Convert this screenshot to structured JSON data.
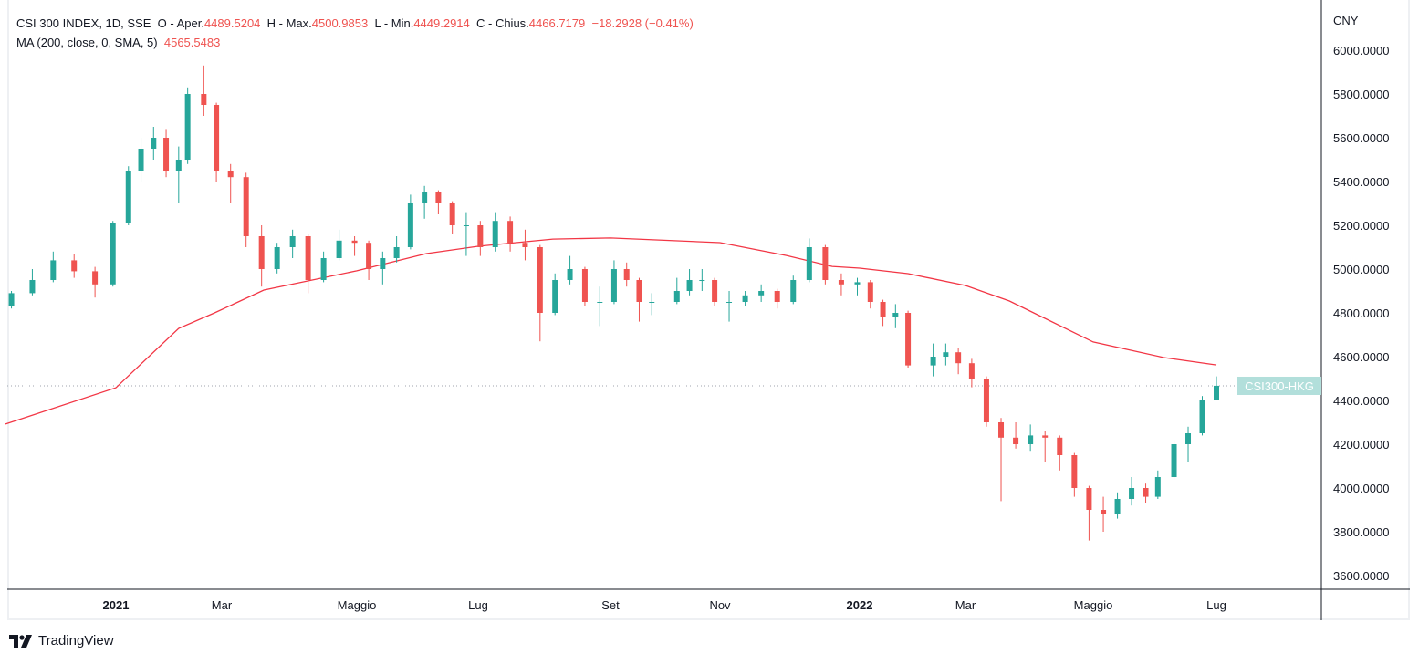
{
  "legend": {
    "symbol": "CSI 300 INDEX, 1D, SSE",
    "open_label": "O - Aper.",
    "open": "4489.5204",
    "high_label": "H - Max.",
    "high": "4500.9853",
    "low_label": "L - Min.",
    "low": "4449.2914",
    "close_label": "C - Chius.",
    "close": "4466.7179",
    "change": "−18.2928 (−0.41%)",
    "ma_label": "MA (200, close, 0, SMA, 5)",
    "ma_value": "4565.5483"
  },
  "brand": "TradingView",
  "colors": {
    "up": "#26a69a",
    "down": "#ef5350",
    "ma": "#f23645",
    "price_label_bg": "#b2dfdb"
  },
  "chart_data": {
    "type": "candlestick",
    "currency_label": "CNY",
    "price_label": "CSI300-HKG",
    "last_price": 4466.7179,
    "ylim": [
      3600,
      6000
    ],
    "y_ticks": [
      "6000.0000",
      "5800.0000",
      "5600.0000",
      "5400.0000",
      "5200.0000",
      "5000.0000",
      "4800.0000",
      "4600.0000",
      "4400.0000",
      "4200.0000",
      "4000.0000",
      "3800.0000",
      "3600.0000"
    ],
    "x_ticks": [
      {
        "date": "2021-01-01",
        "label": "2021",
        "bold": true
      },
      {
        "date": "2021-03-01",
        "label": "Mar"
      },
      {
        "date": "2021-05-01",
        "label": "Maggio"
      },
      {
        "date": "2021-07-01",
        "label": "Lug"
      },
      {
        "date": "2021-09-01",
        "label": "Set"
      },
      {
        "date": "2021-11-01",
        "label": "Nov"
      },
      {
        "date": "2022-01-01",
        "label": "2022",
        "bold": true
      },
      {
        "date": "2022-03-01",
        "label": "Mar"
      },
      {
        "date": "2022-05-01",
        "label": "Maggio"
      },
      {
        "date": "2022-07-01",
        "label": "Lug"
      }
    ],
    "candles_ohlc": [
      [
        "2020-11-27",
        4830,
        4900,
        4820,
        4890
      ],
      [
        "2020-12-04",
        4890,
        5000,
        4880,
        4950
      ],
      [
        "2020-12-11",
        4950,
        5080,
        4940,
        5040
      ],
      [
        "2020-12-18",
        5040,
        5070,
        4960,
        4990
      ],
      [
        "2020-12-25",
        4990,
        5010,
        4870,
        4930
      ],
      [
        "2020-12-31",
        4930,
        5220,
        4920,
        5210
      ],
      [
        "2021-01-08",
        5210,
        5470,
        5200,
        5450
      ],
      [
        "2021-01-15",
        5450,
        5600,
        5400,
        5550
      ],
      [
        "2021-01-22",
        5550,
        5650,
        5500,
        5600
      ],
      [
        "2021-01-29",
        5600,
        5640,
        5420,
        5450
      ],
      [
        "2021-02-05",
        5450,
        5560,
        5300,
        5500
      ],
      [
        "2021-02-10",
        5500,
        5830,
        5480,
        5800
      ],
      [
        "2021-02-19",
        5800,
        5930,
        5700,
        5750
      ],
      [
        "2021-02-26",
        5750,
        5760,
        5400,
        5450
      ],
      [
        "2021-03-05",
        5450,
        5480,
        5300,
        5420
      ],
      [
        "2021-03-12",
        5420,
        5440,
        5100,
        5150
      ],
      [
        "2021-03-19",
        5150,
        5200,
        4920,
        5000
      ],
      [
        "2021-03-26",
        5000,
        5120,
        4980,
        5100
      ],
      [
        "2021-04-02",
        5100,
        5180,
        5050,
        5150
      ],
      [
        "2021-04-09",
        5150,
        5160,
        4890,
        4950
      ],
      [
        "2021-04-16",
        4950,
        5080,
        4940,
        5050
      ],
      [
        "2021-04-23",
        5050,
        5180,
        5040,
        5130
      ],
      [
        "2021-04-30",
        5130,
        5150,
        5060,
        5120
      ],
      [
        "2021-05-07",
        5120,
        5130,
        4950,
        5000
      ],
      [
        "2021-05-14",
        5000,
        5080,
        4930,
        5050
      ],
      [
        "2021-05-21",
        5050,
        5150,
        5030,
        5100
      ],
      [
        "2021-05-28",
        5100,
        5340,
        5090,
        5300
      ],
      [
        "2021-06-04",
        5300,
        5380,
        5230,
        5350
      ],
      [
        "2021-06-11",
        5350,
        5360,
        5250,
        5300
      ],
      [
        "2021-06-18",
        5300,
        5310,
        5160,
        5200
      ],
      [
        "2021-06-25",
        5200,
        5260,
        5060,
        5200
      ],
      [
        "2021-07-02",
        5200,
        5220,
        5060,
        5100
      ],
      [
        "2021-07-09",
        5100,
        5260,
        5080,
        5220
      ],
      [
        "2021-07-16",
        5220,
        5240,
        5080,
        5120
      ],
      [
        "2021-07-23",
        5120,
        5180,
        5040,
        5100
      ],
      [
        "2021-07-30",
        5100,
        5110,
        4670,
        4800
      ],
      [
        "2021-08-06",
        4800,
        4980,
        4790,
        4950
      ],
      [
        "2021-08-13",
        4950,
        5060,
        4930,
        5000
      ],
      [
        "2021-08-20",
        5000,
        5010,
        4830,
        4850
      ],
      [
        "2021-08-27",
        4850,
        4920,
        4740,
        4850
      ],
      [
        "2021-09-03",
        4850,
        5040,
        4840,
        5000
      ],
      [
        "2021-09-10",
        5000,
        5030,
        4920,
        4950
      ],
      [
        "2021-09-17",
        4950,
        4960,
        4760,
        4850
      ],
      [
        "2021-09-24",
        4850,
        4890,
        4790,
        4850
      ],
      [
        "2021-10-08",
        4850,
        4960,
        4840,
        4900
      ],
      [
        "2021-10-15",
        4900,
        5000,
        4880,
        4950
      ],
      [
        "2021-10-22",
        4950,
        5000,
        4900,
        4950
      ],
      [
        "2021-10-29",
        4950,
        4960,
        4830,
        4850
      ],
      [
        "2021-11-05",
        4850,
        4900,
        4760,
        4850
      ],
      [
        "2021-11-12",
        4850,
        4900,
        4830,
        4880
      ],
      [
        "2021-11-19",
        4880,
        4930,
        4850,
        4900
      ],
      [
        "2021-11-26",
        4900,
        4910,
        4820,
        4850
      ],
      [
        "2021-12-03",
        4850,
        4970,
        4840,
        4950
      ],
      [
        "2021-12-10",
        4950,
        5140,
        4940,
        5100
      ],
      [
        "2021-12-17",
        5100,
        5110,
        4930,
        4950
      ],
      [
        "2021-12-24",
        4950,
        4980,
        4880,
        4930
      ],
      [
        "2021-12-31",
        4930,
        4960,
        4880,
        4940
      ],
      [
        "2022-01-07",
        4940,
        4950,
        4820,
        4850
      ],
      [
        "2022-01-14",
        4850,
        4860,
        4740,
        4780
      ],
      [
        "2022-01-21",
        4780,
        4840,
        4730,
        4800
      ],
      [
        "2022-01-28",
        4800,
        4810,
        4550,
        4560
      ],
      [
        "2022-02-11",
        4560,
        4660,
        4510,
        4600
      ],
      [
        "2022-02-18",
        4600,
        4660,
        4560,
        4620
      ],
      [
        "2022-02-25",
        4620,
        4640,
        4520,
        4570
      ],
      [
        "2022-03-04",
        4570,
        4590,
        4460,
        4500
      ],
      [
        "2022-03-11",
        4500,
        4510,
        4280,
        4300
      ],
      [
        "2022-03-18",
        4300,
        4320,
        3940,
        4230
      ],
      [
        "2022-03-25",
        4230,
        4300,
        4180,
        4200
      ],
      [
        "2022-04-01",
        4200,
        4290,
        4170,
        4240
      ],
      [
        "2022-04-08",
        4240,
        4260,
        4120,
        4230
      ],
      [
        "2022-04-15",
        4230,
        4240,
        4080,
        4150
      ],
      [
        "2022-04-22",
        4150,
        4160,
        3960,
        4000
      ],
      [
        "2022-04-29",
        4000,
        4010,
        3760,
        3900
      ],
      [
        "2022-05-06",
        3900,
        3960,
        3800,
        3880
      ],
      [
        "2022-05-13",
        3880,
        3980,
        3860,
        3950
      ],
      [
        "2022-05-20",
        3950,
        4050,
        3920,
        4000
      ],
      [
        "2022-05-27",
        4000,
        4020,
        3930,
        3960
      ],
      [
        "2022-06-02",
        3960,
        4080,
        3950,
        4050
      ],
      [
        "2022-06-10",
        4050,
        4220,
        4040,
        4200
      ],
      [
        "2022-06-17",
        4200,
        4280,
        4120,
        4250
      ],
      [
        "2022-06-24",
        4250,
        4420,
        4240,
        4400
      ],
      [
        "2022-07-01",
        4400,
        4510,
        4420,
        4467
      ]
    ],
    "ma_200": [
      [
        "2020-11-25",
        4292
      ],
      [
        "2021-01-01",
        4458
      ],
      [
        "2021-02-05",
        4729
      ],
      [
        "2021-02-25",
        4800
      ],
      [
        "2021-03-20",
        4904
      ],
      [
        "2021-05-01",
        4992
      ],
      [
        "2021-06-05",
        5071
      ],
      [
        "2021-07-01",
        5104
      ],
      [
        "2021-08-05",
        5137
      ],
      [
        "2021-09-01",
        5142
      ],
      [
        "2021-11-01",
        5121
      ],
      [
        "2021-11-30",
        5062
      ],
      [
        "2021-12-20",
        5012
      ],
      [
        "2022-01-01",
        5004
      ],
      [
        "2022-01-28",
        4979
      ],
      [
        "2022-03-01",
        4925
      ],
      [
        "2022-03-22",
        4854
      ],
      [
        "2022-05-01",
        4667
      ],
      [
        "2022-06-05",
        4596
      ],
      [
        "2022-07-01",
        4562
      ]
    ]
  }
}
